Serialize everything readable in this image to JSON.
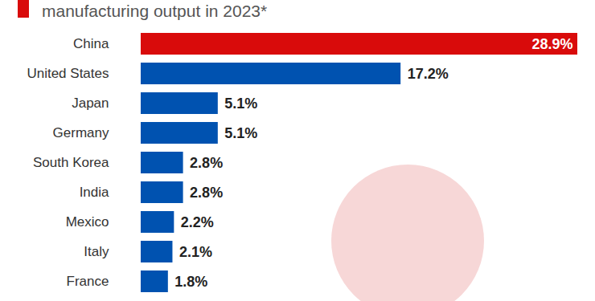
{
  "chart_data": {
    "type": "bar",
    "orientation": "horizontal",
    "title": "manufacturing output in 2023*",
    "categories": [
      "China",
      "United States",
      "Japan",
      "Germany",
      "South Korea",
      "India",
      "Mexico",
      "Italy",
      "France"
    ],
    "values": [
      28.9,
      17.2,
      5.1,
      5.1,
      2.8,
      2.8,
      2.2,
      2.1,
      1.8
    ],
    "value_labels": [
      "28.9%",
      "17.2%",
      "5.1%",
      "5.1%",
      "2.8%",
      "2.8%",
      "2.2%",
      "2.1%",
      "1.8%"
    ],
    "colors": [
      "#d90b0b",
      "#0052b0",
      "#0052b0",
      "#0052b0",
      "#0052b0",
      "#0052b0",
      "#0052b0",
      "#0052b0",
      "#0052b0"
    ],
    "xlim": [
      0,
      28.9
    ],
    "xticks": [],
    "data_labels": true,
    "tick_labels": "y",
    "grid": false
  }
}
